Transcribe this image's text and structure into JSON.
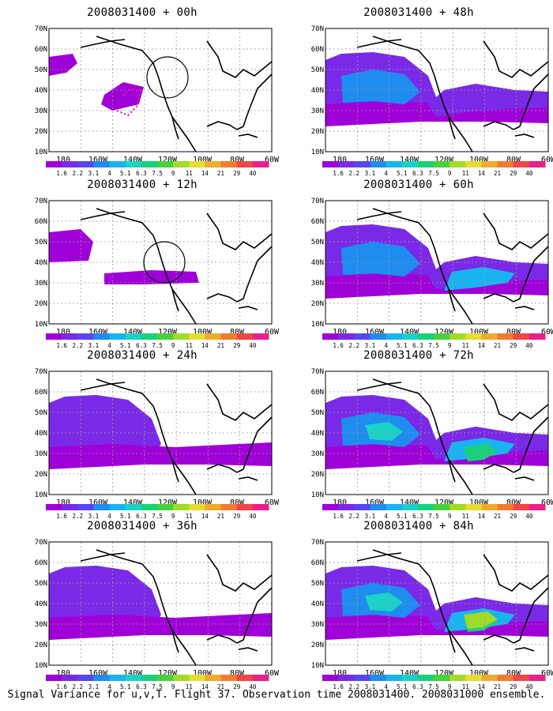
{
  "figure_caption": "Signal Variance for u,v,T. Flight 37. Observation time 2008031400. 2008031000 ensemble.",
  "map_axes": {
    "lon_labels": [
      "180",
      "160W",
      "140W",
      "120W",
      "100W",
      "80W",
      "60W"
    ],
    "lat_labels": [
      "10N",
      "20N",
      "30N",
      "40N",
      "50N",
      "60N",
      "70N"
    ]
  },
  "colorbar": {
    "labels": [
      "1.6",
      "2.2",
      "3.1",
      "4",
      "5.1",
      "6.3",
      "7.5",
      "9",
      "11",
      "14",
      "21",
      "29",
      "40"
    ],
    "colors": [
      "#a000d8",
      "#7a2ae6",
      "#5a46f0",
      "#1f8cf0",
      "#19b4f0",
      "#19d2c8",
      "#18d27a",
      "#46d23c",
      "#a0dc28",
      "#e6dc32",
      "#f0aa2d",
      "#f07d2d",
      "#f04646",
      "#eb1e8c"
    ]
  },
  "panels": [
    {
      "title": "2008031400 + 00h",
      "level": 0,
      "circle": true,
      "track": true
    },
    {
      "title": "2008031400 + 12h",
      "level": 1,
      "circle": true,
      "track": false
    },
    {
      "title": "2008031400 + 24h",
      "level": 2,
      "circle": false,
      "track": false
    },
    {
      "title": "2008031400 + 36h",
      "level": 3,
      "circle": false,
      "track": false
    },
    {
      "title": "2008031400 + 48h",
      "level": 4,
      "circle": false,
      "track": false
    },
    {
      "title": "2008031400 + 60h",
      "level": 5,
      "circle": false,
      "track": false
    },
    {
      "title": "2008031400 + 72h",
      "level": 6,
      "circle": false,
      "track": false
    },
    {
      "title": "2008031400 + 84h",
      "level": 7,
      "circle": false,
      "track": false
    }
  ]
}
